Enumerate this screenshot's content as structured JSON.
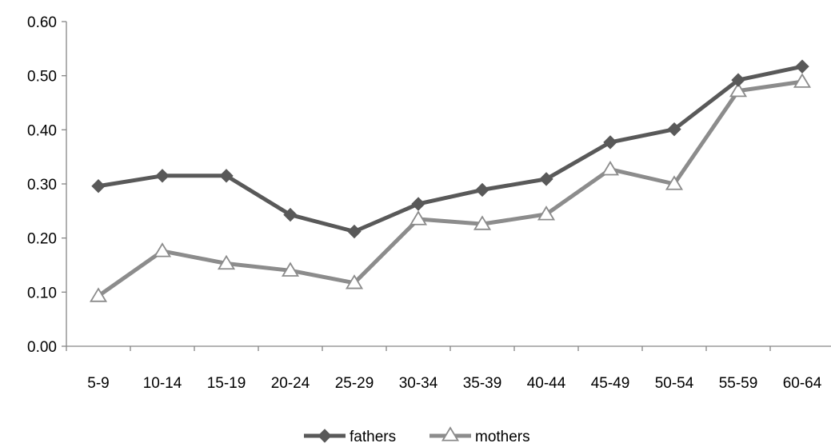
{
  "chart_data": {
    "type": "line",
    "title": "",
    "xlabel": "",
    "ylabel": "",
    "categories": [
      "5-9",
      "10-14",
      "15-19",
      "20-24",
      "25-29",
      "30-34",
      "35-39",
      "40-44",
      "45-49",
      "50-54",
      "55-59",
      "60-64"
    ],
    "ylim": [
      0,
      0.6
    ],
    "yticks": [
      "0.00",
      "0.10",
      "0.20",
      "0.30",
      "0.40",
      "0.50",
      "0.60"
    ],
    "grid": false,
    "legend_position": "bottom",
    "series": [
      {
        "name": "fathers",
        "marker": "diamond",
        "color": "#595959",
        "values": [
          0.296,
          0.315,
          0.315,
          0.243,
          0.212,
          0.263,
          0.289,
          0.309,
          0.377,
          0.401,
          0.492,
          0.517
        ]
      },
      {
        "name": "mothers",
        "marker": "triangle-open",
        "color": "#8c8c8c",
        "values": [
          0.093,
          0.176,
          0.153,
          0.14,
          0.117,
          0.235,
          0.226,
          0.244,
          0.327,
          0.3,
          0.472,
          0.489
        ]
      }
    ]
  }
}
